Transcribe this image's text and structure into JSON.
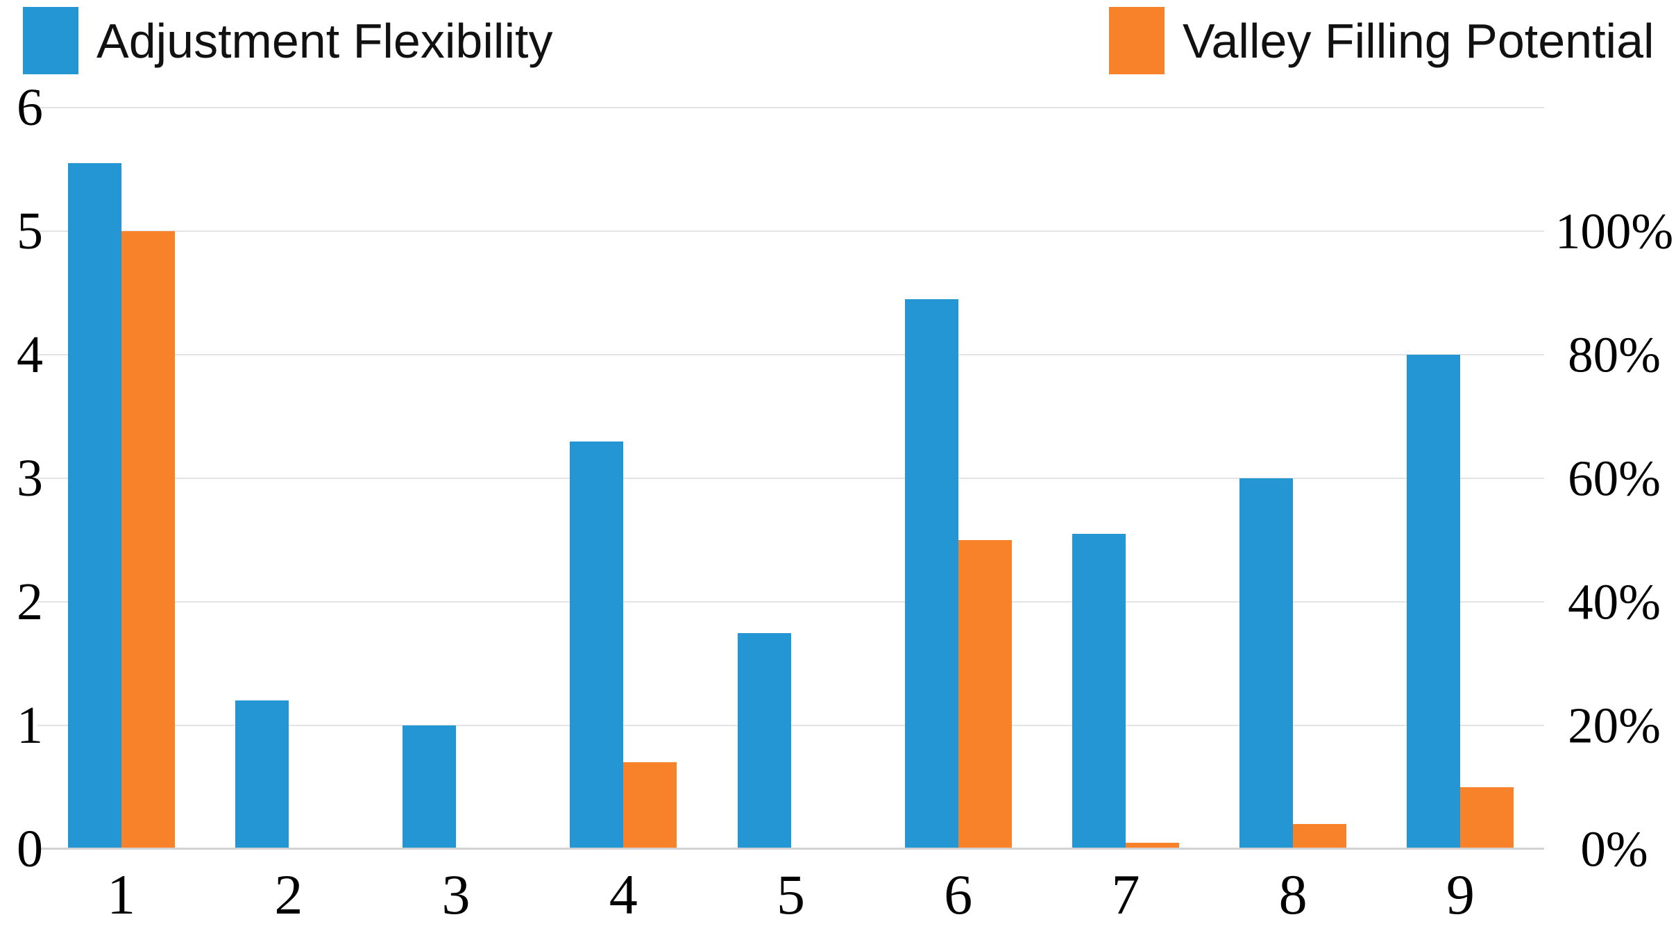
{
  "legend": [
    {
      "label": "Adjustment Flexibility",
      "color": "#2396d3",
      "swatch": "blue-square"
    },
    {
      "label": "Valley Filling Potential",
      "color": "#f7822a",
      "swatch": "orange-square"
    }
  ],
  "chart_data": {
    "type": "bar",
    "title": "",
    "xlabel": "",
    "ylabel_left": "",
    "ylabel_right": "",
    "categories": [
      "1",
      "2",
      "3",
      "4",
      "5",
      "6",
      "7",
      "8",
      "9"
    ],
    "series": [
      {
        "name": "Adjustment Flexibility",
        "axis": "left",
        "color": "#2396d3",
        "values": [
          5.55,
          1.2,
          1.0,
          3.3,
          1.75,
          4.45,
          2.55,
          3.0,
          4.0
        ]
      },
      {
        "name": "Valley Filling Potential",
        "axis": "right",
        "color": "#f7822a",
        "values_percent": [
          100,
          0,
          0,
          14,
          0,
          50,
          1,
          4,
          10
        ]
      }
    ],
    "left_axis": {
      "min": 0,
      "max": 6,
      "ticks": [
        6,
        5,
        4,
        3,
        2,
        1,
        0
      ]
    },
    "right_axis": {
      "min_percent": 0,
      "max_percent": 120,
      "tick_labels": [
        "100%",
        "80%",
        "60%",
        "40%",
        "20%",
        "0%"
      ],
      "tick_percent_values": [
        100,
        80,
        60,
        40,
        20,
        0
      ]
    },
    "axis_alignment": "100% on right axis aligns with 5.0 on left axis (20% per left-axis unit)",
    "grid": true,
    "gridline_color": "#e4e4e4",
    "legend_position": "top"
  }
}
